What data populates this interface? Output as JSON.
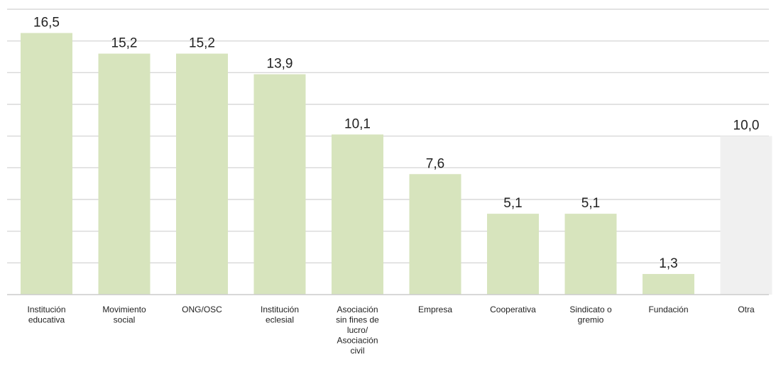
{
  "chart_data": {
    "type": "bar",
    "title": "",
    "xlabel": "",
    "ylabel": "",
    "ylim": [
      0,
      18
    ],
    "grid": true,
    "categories": [
      [
        "Institución",
        "educativa"
      ],
      [
        "Movimiento",
        "social"
      ],
      [
        "ONG/OSC"
      ],
      [
        "Institución",
        "eclesial"
      ],
      [
        "Asociación",
        "sin fines de",
        "lucro/",
        "Asociación",
        "civil"
      ],
      [
        "Empresa"
      ],
      [
        "Cooperativa"
      ],
      [
        "Sindicato o",
        "gremio"
      ],
      [
        "Fundación"
      ],
      [
        "Otra"
      ]
    ],
    "values": [
      16.5,
      15.2,
      15.2,
      13.9,
      10.1,
      7.6,
      5.1,
      5.1,
      1.3,
      10.0
    ],
    "value_labels": [
      "16,5",
      "15,2",
      "15,2",
      "13,9",
      "10,1",
      "7,6",
      "5,1",
      "5,1",
      "1,3",
      "10,0"
    ],
    "colors": {
      "bar": "#d7e4bd",
      "bar_other": "#f0f0f0",
      "grid": "#d9d9d9"
    }
  }
}
